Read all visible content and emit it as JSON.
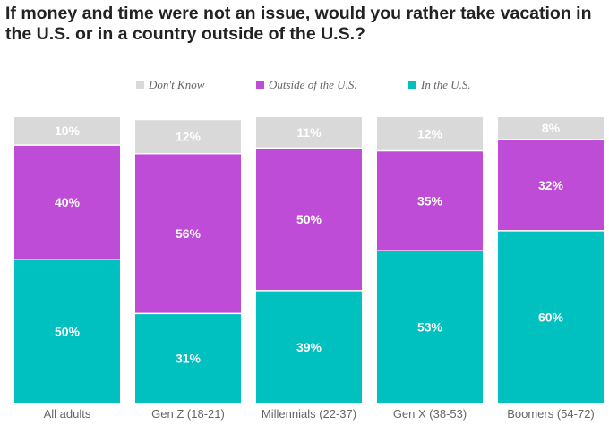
{
  "chart_data": {
    "type": "bar",
    "stacked": true,
    "title": "If money and time were not an issue, would you rather take vacation in the U.S. or in a country outside of the U.S.?",
    "categories": [
      "All adults",
      "Gen Z (18-21)",
      "Millennials (22-37)",
      "Gen X (38-53)",
      "Boomers (54-72)"
    ],
    "series": [
      {
        "name": "In the U.S.",
        "values": [
          50,
          31,
          39,
          53,
          60
        ],
        "color": "#00c0c0"
      },
      {
        "name": "Outside of the U.S.",
        "values": [
          40,
          56,
          50,
          35,
          32
        ],
        "color": "#bf4cd6"
      },
      {
        "name": "Don't Know",
        "values": [
          10,
          12,
          11,
          12,
          8
        ],
        "color": "#d9d9d9"
      }
    ],
    "legend_order": [
      "Don't Know",
      "Outside of the U.S.",
      "In the U.S."
    ],
    "legend_position": "top",
    "ylim": [
      0,
      100
    ],
    "grid": false,
    "value_suffix": "%"
  }
}
